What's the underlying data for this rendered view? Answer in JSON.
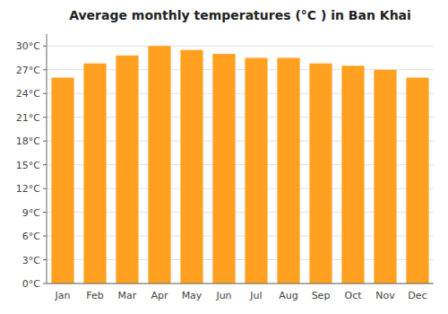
{
  "chart_data": {
    "type": "bar",
    "title": "Average monthly temperatures (°C ) in Ban Khai",
    "categories": [
      "Jan",
      "Feb",
      "Mar",
      "Apr",
      "May",
      "Jun",
      "Jul",
      "Aug",
      "Sep",
      "Oct",
      "Nov",
      "Dec"
    ],
    "values": [
      26.0,
      27.8,
      28.8,
      30.0,
      29.5,
      29.0,
      28.5,
      28.5,
      27.8,
      27.5,
      27.0,
      26.0
    ],
    "color": "#FFA020",
    "ylim": [
      0,
      31.5
    ],
    "yticks": [
      {
        "value": 0,
        "label": "0°C"
      },
      {
        "value": 3,
        "label": "3°C"
      },
      {
        "value": 6,
        "label": "6°C"
      },
      {
        "value": 9,
        "label": "9°C"
      },
      {
        "value": 12,
        "label": "12°C"
      },
      {
        "value": 15,
        "label": "15°C"
      },
      {
        "value": 18,
        "label": "18°C"
      },
      {
        "value": 21,
        "label": "21°C"
      },
      {
        "value": 24,
        "label": "24°C"
      },
      {
        "value": 27,
        "label": "27°C"
      },
      {
        "value": 30,
        "label": "30°C"
      }
    ],
    "grid": true
  }
}
